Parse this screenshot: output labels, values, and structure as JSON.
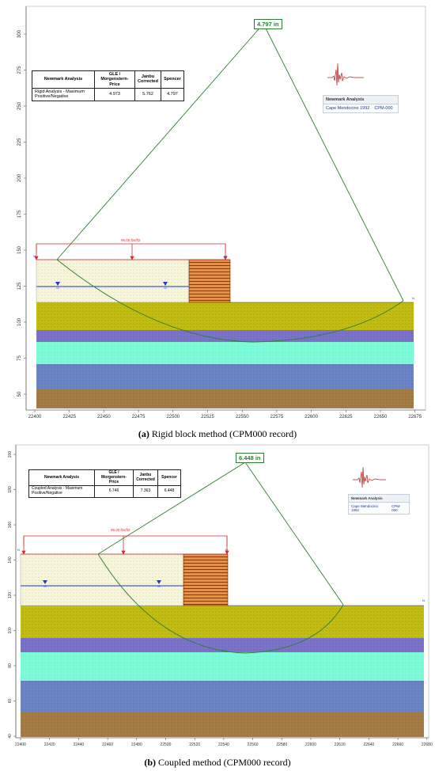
{
  "panels": [
    {
      "id": "a",
      "caption": "(a) Rigid block method (CPM000 record)",
      "caption_prefix": "(a)",
      "caption_text": "Rigid block method (CPM000 record)",
      "factor_label": "4.797 in",
      "load_label": "95.00 lbs/ft2",
      "y_ticks": [
        "50",
        "75",
        "100",
        "125",
        "150",
        "175",
        "200",
        "225",
        "250",
        "275",
        "300"
      ],
      "x_ticks": [
        "22400",
        "22425",
        "22450",
        "22475",
        "22500",
        "22525",
        "22550",
        "22575",
        "22600",
        "22625",
        "22650",
        "22675"
      ],
      "table": {
        "headers": [
          "Newmark Analysis",
          "GLE / Morgenstern-Price",
          "Janbu Corrected",
          "Spencer"
        ],
        "row_label": "Rigid Analysis - Maximum Positive/Negative",
        "values": [
          "4.973",
          "5.762",
          "4.797"
        ]
      },
      "newmark": {
        "title": "Newmark Analysis",
        "record": "Cape Mendocino 1992",
        "code": "CPM-000"
      }
    },
    {
      "id": "b",
      "caption": "(b) Coupled method (CPM000 record)",
      "caption_prefix": "(b)",
      "caption_text": "Coupled method (CPM000 record)",
      "factor_label": "6.448 in",
      "load_label": "95.00 lbs/ft2",
      "y_ticks": [
        "40",
        "60",
        "80",
        "100",
        "120",
        "140",
        "160",
        "180",
        "200"
      ],
      "x_ticks": [
        "22400",
        "22420",
        "22440",
        "22460",
        "22480",
        "22500",
        "22520",
        "22540",
        "22560",
        "22580",
        "22600",
        "22620",
        "22640",
        "22660",
        "22680"
      ],
      "table": {
        "headers": [
          "Newmark Analysis",
          "GLE / Morgenstern-Price",
          "Janbu Corrected",
          "Spencer"
        ],
        "row_label": "Coupled Analysis - Maximum Positive/Negative",
        "values": [
          "6.746",
          "7.363",
          "6.448"
        ]
      },
      "newmark": {
        "title": "Newmark Analysis",
        "record": "Cape Mendocino 1992",
        "code": "CPM-000"
      }
    }
  ],
  "colors": {
    "fill_zone": "#f7f5dc",
    "orange_block": "#e2904a",
    "olive_layer": "#c2bd12",
    "purple_layer": "#7a73c7",
    "cyan_layer": "#7dfbd8",
    "blue_layer": "#6a84c4",
    "brown_layer": "#a57c45",
    "slip_line": "#2e7d32",
    "water_line": "#1f3bd1",
    "load": "#d32f2f"
  }
}
